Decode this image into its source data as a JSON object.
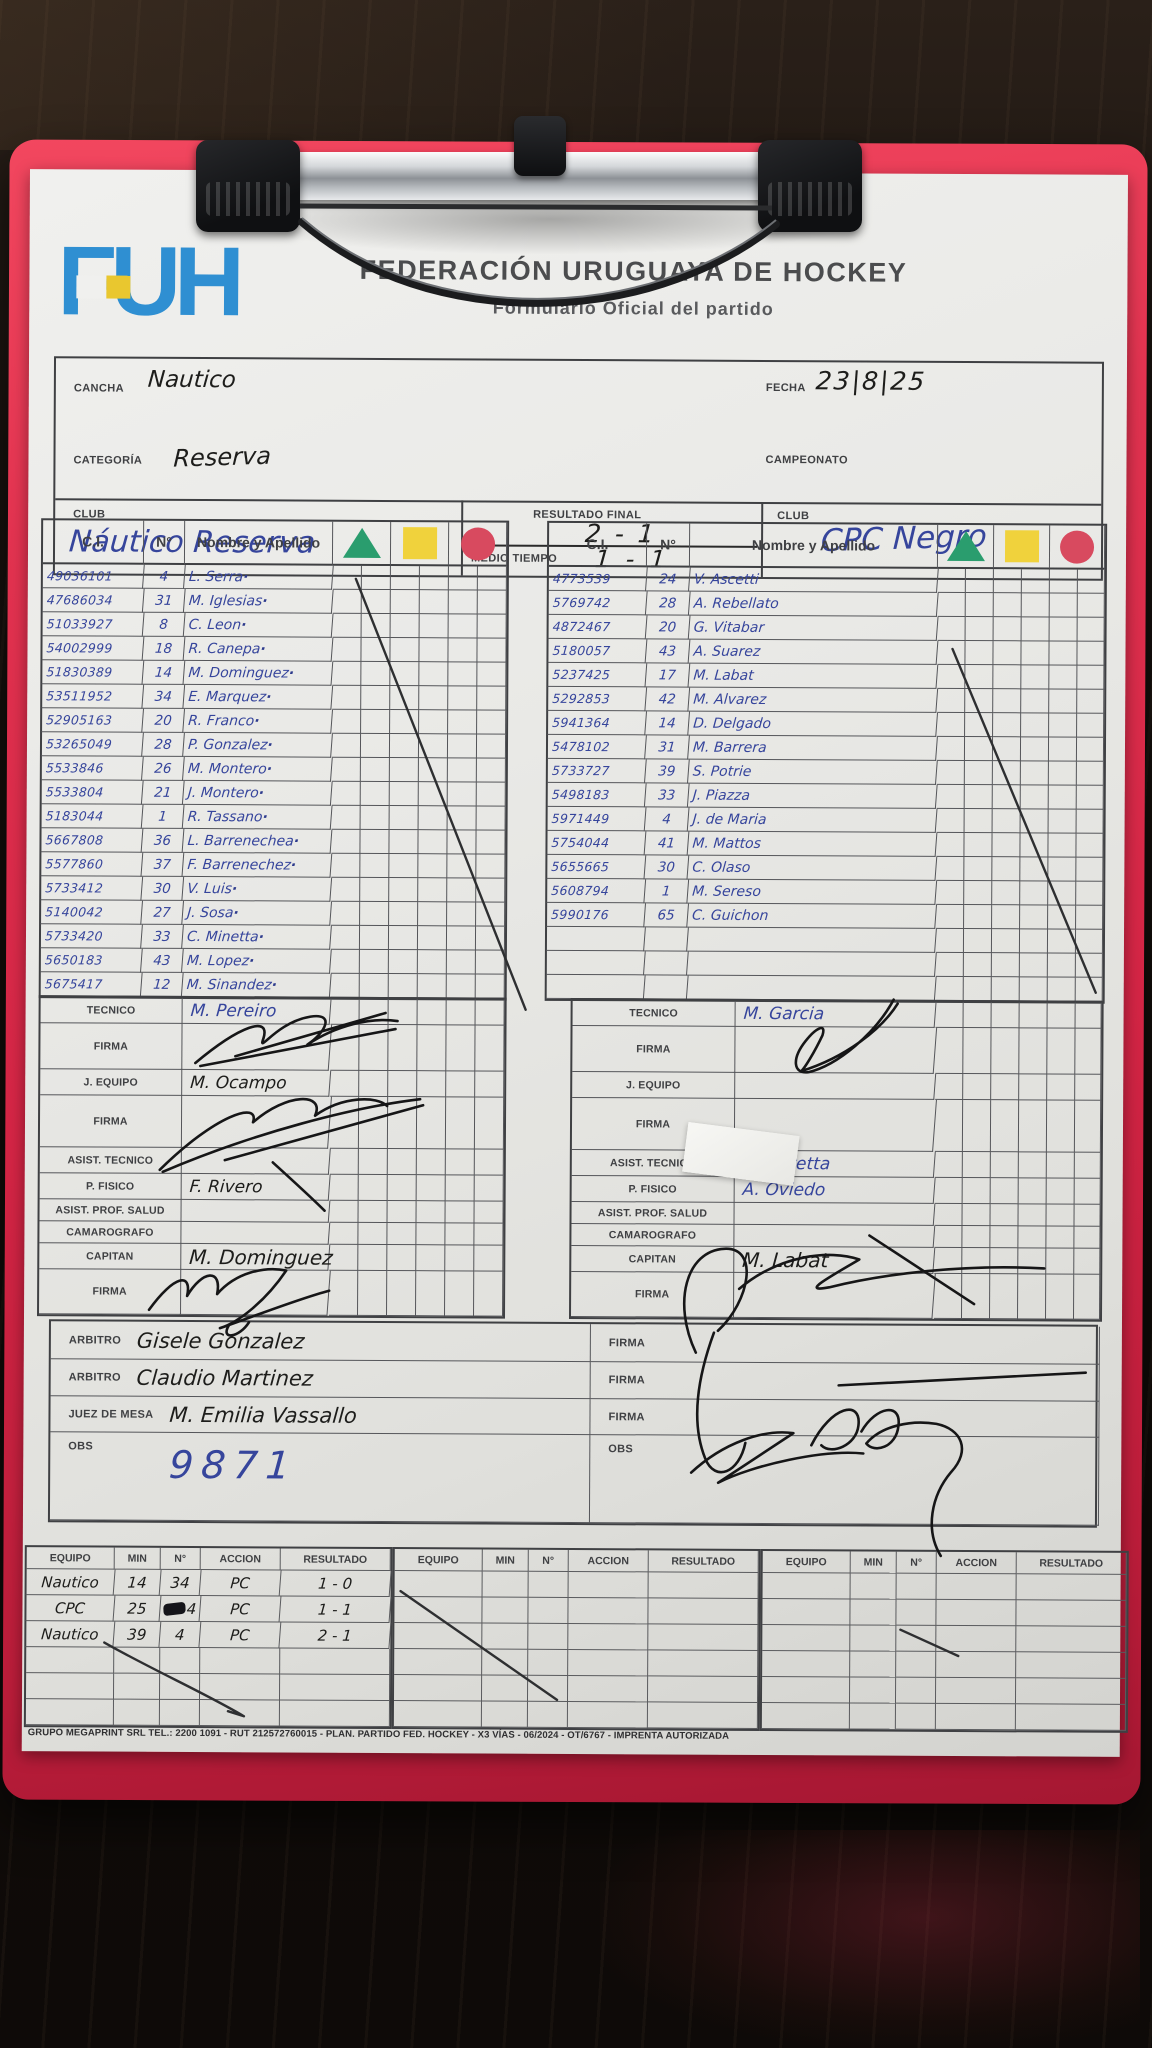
{
  "header": {
    "logo_text": "FUH",
    "org": "FEDERACIÓN URUGUAYA DE HOCKEY",
    "subtitle": "Formulario Oficial del partido"
  },
  "labels": {
    "cancha": "CANCHA",
    "fecha": "FECHA",
    "categoria": "CATEGORÍA",
    "campeonato": "CAMPEONATO",
    "club": "CLUB",
    "resultado_final": "RESULTADO FINAL",
    "medio_tiempo": "MEDIO TIEMPO",
    "firma": "FIRMA",
    "obs": "OBS"
  },
  "match": {
    "cancha": "Nautico",
    "fecha": "23|8|25",
    "categoria": "Reserva",
    "campeonato": "",
    "resultado_final": "2 - 1",
    "medio_tiempo": "1 - 1"
  },
  "roster_headers": [
    "C.I.",
    "N°",
    "Nombre y Apellido"
  ],
  "symbols": [
    {
      "name": "triangle",
      "color": "#2a9d6e"
    },
    {
      "name": "square",
      "color": "#f0d23c"
    },
    {
      "name": "circle",
      "color": "#d84a5f"
    }
  ],
  "teams": {
    "left": {
      "club": "Náutico Reserva",
      "players": [
        {
          "ci": "49036101",
          "num": "4",
          "name": "L. Serra"
        },
        {
          "ci": "47686034",
          "num": "31",
          "name": "M. Iglesias"
        },
        {
          "ci": "51033927",
          "num": "8",
          "name": "C. Leon"
        },
        {
          "ci": "54002999",
          "num": "18",
          "name": "R. Canepa"
        },
        {
          "ci": "51830389",
          "num": "14",
          "name": "M. Dominguez"
        },
        {
          "ci": "53511952",
          "num": "34",
          "name": "E. Marquez"
        },
        {
          "ci": "52905163",
          "num": "20",
          "name": "R. Franco"
        },
        {
          "ci": "53265049",
          "num": "28",
          "name": "P. Gonzalez"
        },
        {
          "ci": "5533846",
          "num": "26",
          "name": "M. Montero"
        },
        {
          "ci": "5533804",
          "num": "21",
          "name": "J. Montero"
        },
        {
          "ci": "5183044",
          "num": "1",
          "name": "R. Tassano"
        },
        {
          "ci": "5667808",
          "num": "36",
          "name": "L. Barrenechea"
        },
        {
          "ci": "5577860",
          "num": "37",
          "name": "F. Barrenechez"
        },
        {
          "ci": "5733412",
          "num": "30",
          "name": "V. Luis"
        },
        {
          "ci": "5140042",
          "num": "27",
          "name": "J. Sosa"
        },
        {
          "ci": "5733420",
          "num": "33",
          "name": "C. Minetta"
        },
        {
          "ci": "5650183",
          "num": "43",
          "name": "M. Lopez"
        },
        {
          "ci": "5675417",
          "num": "12",
          "name": "M. Sinandez"
        }
      ],
      "officials": [
        {
          "label": "TECNICO",
          "value": "M. Pereiro",
          "ink": "blue"
        },
        {
          "label": "FIRMA",
          "value": "",
          "ink": "black"
        },
        {
          "label": "J. EQUIPO",
          "value": "M. Ocampo",
          "ink": "black"
        },
        {
          "label": "FIRMA",
          "value": "",
          "ink": "black"
        },
        {
          "label": "ASIST. TECNICO",
          "value": "",
          "ink": "black"
        },
        {
          "label": "P. FISICO",
          "value": "F. Rivero",
          "ink": "black"
        },
        {
          "label": "ASIST. PROF. SALUD",
          "value": "",
          "ink": "black"
        },
        {
          "label": "CAMAROGRAFO",
          "value": "",
          "ink": "black"
        },
        {
          "label": "CAPITAN",
          "value": "M. Dominguez",
          "ink": "black"
        },
        {
          "label": "FIRMA",
          "value": "",
          "ink": "black"
        }
      ]
    },
    "right": {
      "club": "CPC Negro",
      "players": [
        {
          "ci": "4773539",
          "num": "24",
          "name": "V. Ascetti"
        },
        {
          "ci": "5769742",
          "num": "28",
          "name": "A. Rebellato"
        },
        {
          "ci": "4872467",
          "num": "20",
          "name": "G. Vitabar"
        },
        {
          "ci": "5180057",
          "num": "43",
          "name": "A. Suarez"
        },
        {
          "ci": "5237425",
          "num": "17",
          "name": "M. Labat"
        },
        {
          "ci": "5292853",
          "num": "42",
          "name": "M. Alvarez"
        },
        {
          "ci": "5941364",
          "num": "14",
          "name": "D. Delgado"
        },
        {
          "ci": "5478102",
          "num": "31",
          "name": "M. Barrera"
        },
        {
          "ci": "5733727",
          "num": "39",
          "name": "S. Potrie"
        },
        {
          "ci": "5498183",
          "num": "33",
          "name": "J. Piazza"
        },
        {
          "ci": "5971449",
          "num": "4",
          "name": "J. de Maria"
        },
        {
          "ci": "5754044",
          "num": "41",
          "name": "M. Mattos"
        },
        {
          "ci": "5655665",
          "num": "30",
          "name": "C. Olaso"
        },
        {
          "ci": "5608794",
          "num": "1",
          "name": "M. Sereso"
        },
        {
          "ci": "5990176",
          "num": "65",
          "name": "C. Guichon"
        },
        {
          "ci": "",
          "num": "",
          "name": ""
        },
        {
          "ci": "",
          "num": "",
          "name": ""
        },
        {
          "ci": "",
          "num": "",
          "name": ""
        }
      ],
      "officials": [
        {
          "label": "TECNICO",
          "value": "M. Garcia",
          "ink": "blue"
        },
        {
          "label": "FIRMA",
          "value": "",
          "ink": "black"
        },
        {
          "label": "J. EQUIPO",
          "value": "",
          "ink": "black"
        },
        {
          "label": "FIRMA",
          "value": "",
          "ink": "black"
        },
        {
          "label": "ASIST. TECNICO",
          "value": "D. Ceretta",
          "ink": "blue"
        },
        {
          "label": "P. FISICO",
          "value": "A. Oviedo",
          "ink": "blue"
        },
        {
          "label": "ASIST. PROF. SALUD",
          "value": "",
          "ink": "black"
        },
        {
          "label": "CAMAROGRAFO",
          "value": "",
          "ink": "black"
        },
        {
          "label": "CAPITAN",
          "value": "M. Labat",
          "ink": "black"
        },
        {
          "label": "FIRMA",
          "value": "",
          "ink": "black"
        }
      ]
    }
  },
  "referees": {
    "rows": [
      {
        "label": "ARBITRO",
        "name": "Gisele Gonzalez"
      },
      {
        "label": "ARBITRO",
        "name": "Claudio Martinez"
      },
      {
        "label": "JUEZ DE MESA",
        "name": "M. Emilia Vassallo"
      }
    ],
    "firma_label": "FIRMA",
    "obs_label": "OBS",
    "obs_value": "9871"
  },
  "actions": {
    "headers": [
      "EQUIPO",
      "MIN",
      "N°",
      "ACCION",
      "RESULTADO"
    ],
    "sections": [
      {
        "rows": [
          {
            "equipo": "Nautico",
            "min": "14",
            "num": "34",
            "accion": "PC",
            "resultado": "1 - 0",
            "blot": false
          },
          {
            "equipo": "CPC",
            "min": "25",
            "num": "4",
            "accion": "PC",
            "resultado": "1 - 1",
            "blot": true
          },
          {
            "equipo": "Nautico",
            "min": "39",
            "num": "4",
            "accion": "PC",
            "resultado": "2 - 1",
            "blot": false
          }
        ]
      },
      {
        "rows": []
      },
      {
        "rows": []
      }
    ]
  },
  "footer": "GRUPO MEGAPRINT SRL TEL.: 2200 1091 - RUT 212572760015 - PLAN. PARTIDO FED. HOCKEY - X3 VÍAS - 06/2024 - OT/6767 - IMPRENTA AUTORIZADA"
}
